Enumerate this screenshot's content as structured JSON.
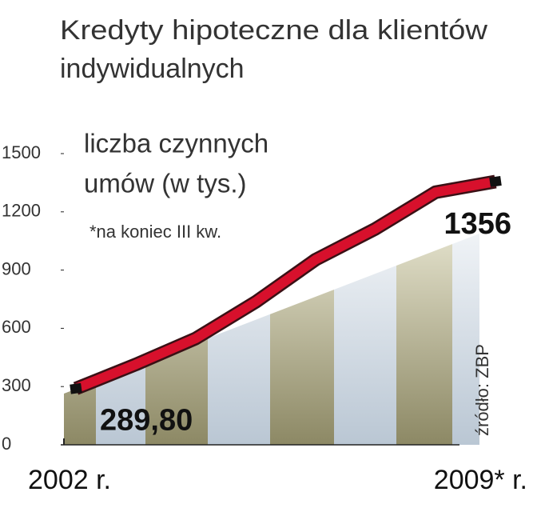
{
  "chart_data": {
    "type": "line",
    "title": [
      "Kredyty hipoteczne dla klientów",
      "indywidualnych"
    ],
    "subtitle": [
      "liczba czynnych",
      "umów (w tys.)"
    ],
    "note": "*na koniec III kw.",
    "source": "źródło: ZBP",
    "categories": [
      "2002 r.",
      null,
      null,
      null,
      null,
      null,
      null,
      "2009* r."
    ],
    "series": [
      {
        "color": "#d7102c",
        "values": [
          289.8,
          414,
          548,
          736,
          954,
          1113,
          1301,
          1356
        ],
        "value_labels": [
          "289,80",
          null,
          null,
          null,
          null,
          null,
          null,
          "1356"
        ]
      }
    ],
    "ylim": [
      0,
      1500
    ],
    "yticks": [
      0,
      300,
      600,
      900,
      1200,
      1500
    ]
  }
}
